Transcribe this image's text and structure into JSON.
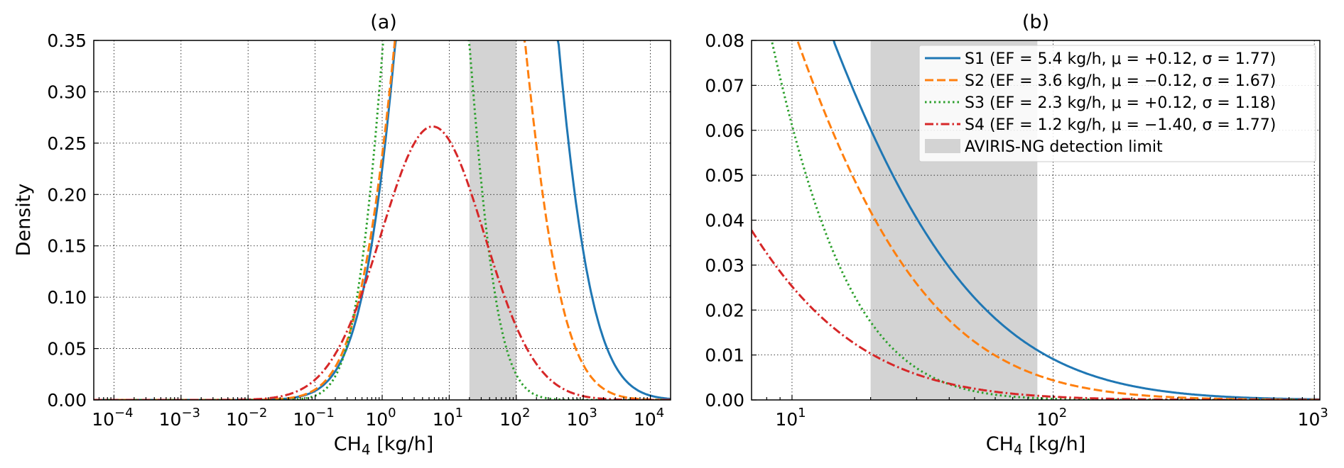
{
  "chart_data": [
    {
      "type": "line",
      "title": "(a)",
      "xlabel": "CH",
      "xlabel_sub": "4",
      "xlabel_unit": " [kg/h]",
      "ylabel": "Density",
      "xscale": "log",
      "xlim": [
        5e-05,
        20000
      ],
      "ylim": [
        0,
        0.35
      ],
      "yticks": [
        "0.00",
        "0.05",
        "0.10",
        "0.15",
        "0.20",
        "0.25",
        "0.30",
        "0.35"
      ],
      "xticks": [
        {
          "base": "10",
          "exp": "−4"
        },
        {
          "base": "10",
          "exp": "−3"
        },
        {
          "base": "10",
          "exp": "−2"
        },
        {
          "base": "10",
          "exp": "−1"
        },
        {
          "base": "10",
          "exp": "0"
        },
        {
          "base": "10",
          "exp": "1"
        },
        {
          "base": "10",
          "exp": "2"
        },
        {
          "base": "10",
          "exp": "3"
        },
        {
          "base": "10",
          "exp": "4"
        }
      ],
      "grid": true,
      "detection_band": [
        20,
        100
      ],
      "series": [
        {
          "name": "S1",
          "mu": 0.12,
          "sigma": 1.77
        },
        {
          "name": "S2",
          "mu": -0.12,
          "sigma": 1.67
        },
        {
          "name": "S3",
          "mu": 0.12,
          "sigma": 1.18
        },
        {
          "name": "S4",
          "mu": -1.4,
          "sigma": 1.77
        }
      ]
    },
    {
      "type": "line",
      "title": "(b)",
      "xlabel": "CH",
      "xlabel_sub": "4",
      "xlabel_unit": " [kg/h]",
      "ylabel": "",
      "xscale": "log",
      "xlim": [
        7,
        1050
      ],
      "ylim": [
        0,
        0.08
      ],
      "yticks": [
        "0.00",
        "0.01",
        "0.02",
        "0.03",
        "0.04",
        "0.05",
        "0.06",
        "0.07",
        "0.08"
      ],
      "xticks": [
        {
          "base": "10",
          "exp": "1"
        },
        {
          "base": "10",
          "exp": "2"
        },
        {
          "base": "10",
          "exp": "3"
        }
      ],
      "grid": true,
      "detection_band": [
        20,
        87
      ],
      "legend_position": "top-right",
      "series": [
        {
          "name": "S1",
          "mu": 0.12,
          "sigma": 1.77
        },
        {
          "name": "S2",
          "mu": -0.12,
          "sigma": 1.67
        },
        {
          "name": "S3",
          "mu": 0.12,
          "sigma": 1.18
        },
        {
          "name": "S4",
          "mu": -1.4,
          "sigma": 1.77
        }
      ]
    }
  ],
  "legend": [
    {
      "label": "S1 (EF = 5.4 kg/h, μ = +0.12, σ = 1.77)",
      "color": "#1f77b4",
      "style": "solid"
    },
    {
      "label": "S2 (EF = 3.6 kg/h, μ = −0.12, σ = 1.67)",
      "color": "#ff7f0e",
      "style": "dashed"
    },
    {
      "label": "S3 (EF = 2.3 kg/h, μ = +0.12, σ = 1.18)",
      "color": "#2ca02c",
      "style": "dotted"
    },
    {
      "label": "S4 (EF = 1.2 kg/h, μ = −1.40, σ = 1.77)",
      "color": "#d62728",
      "style": "dashdot"
    },
    {
      "label": "AVIRIS-NG detection limit",
      "color": "#d3d3d3",
      "style": "patch"
    }
  ]
}
